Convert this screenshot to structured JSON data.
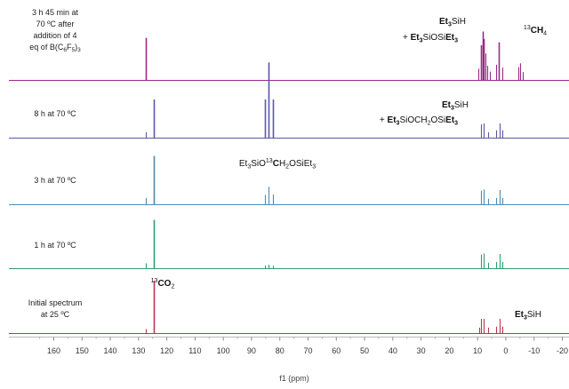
{
  "chart_data": {
    "type": "line",
    "title": "",
    "xlabel": "f1 (ppm)",
    "ylabel": "",
    "xlim": [
      165,
      -20
    ],
    "x_reversed": true,
    "x_ticks": [
      160,
      150,
      140,
      130,
      120,
      110,
      100,
      90,
      80,
      70,
      60,
      50,
      40,
      30,
      20,
      10,
      0,
      -10,
      -20
    ],
    "grid": false,
    "series": [
      {
        "name": "3 h 45 min at 70 ºC after addition of 4 eq of B(C6F5)3",
        "label_lines": [
          "3 h 45 min at",
          "70 ºC after",
          "addition of 4",
          "eq of B(C6F5)3"
        ],
        "color": "#9b2a89",
        "peaks": [
          {
            "x": 127.5,
            "h": 0.87
          },
          {
            "x": 9.6,
            "h": 0.24
          },
          {
            "x": 8.9,
            "h": 0.72
          },
          {
            "x": 8.3,
            "h": 1.0
          },
          {
            "x": 7.7,
            "h": 0.85
          },
          {
            "x": 7.1,
            "h": 0.55
          },
          {
            "x": 6.5,
            "h": 0.3
          },
          {
            "x": 5.5,
            "h": 0.18
          },
          {
            "x": 3.6,
            "h": 0.32
          },
          {
            "x": 2.5,
            "h": 0.78
          },
          {
            "x": 1.2,
            "h": 0.26
          },
          {
            "x": -4.3,
            "h": 0.27
          },
          {
            "x": -5.1,
            "h": 0.35
          },
          {
            "x": -6.0,
            "h": 0.17
          }
        ]
      },
      {
        "name": "8 h at 70 ºC",
        "label_lines": [
          "8 h at 70 ºC"
        ],
        "color": "#5a56a6",
        "peaks": [
          {
            "x": 127.5,
            "h": 0.12
          },
          {
            "x": 124.5,
            "h": 0.79
          },
          {
            "x": 85.4,
            "h": 0.79
          },
          {
            "x": 83.9,
            "h": 1.55
          },
          {
            "x": 82.3,
            "h": 0.79
          },
          {
            "x": 8.9,
            "h": 0.28
          },
          {
            "x": 7.7,
            "h": 0.3
          },
          {
            "x": 6.4,
            "h": 0.12
          },
          {
            "x": 3.5,
            "h": 0.16
          },
          {
            "x": 2.3,
            "h": 0.3
          },
          {
            "x": 1.1,
            "h": 0.16
          }
        ]
      },
      {
        "name": "3 h at 70 ºC",
        "label_lines": [
          "3 h at 70 ºC"
        ],
        "color": "#4f8ab0",
        "peaks": [
          {
            "x": 127.5,
            "h": 0.14
          },
          {
            "x": 124.5,
            "h": 1.0
          },
          {
            "x": 85.4,
            "h": 0.2
          },
          {
            "x": 83.9,
            "h": 0.37
          },
          {
            "x": 82.3,
            "h": 0.21
          },
          {
            "x": 8.9,
            "h": 0.29
          },
          {
            "x": 7.7,
            "h": 0.31
          },
          {
            "x": 6.4,
            "h": 0.12
          },
          {
            "x": 3.5,
            "h": 0.14
          },
          {
            "x": 2.3,
            "h": 0.3
          },
          {
            "x": 1.1,
            "h": 0.14
          }
        ]
      },
      {
        "name": "1 h at 70 ºC",
        "label_lines": [
          "1 h at 70 ºC"
        ],
        "color": "#2f9e6f",
        "peaks": [
          {
            "x": 127.5,
            "h": 0.11
          },
          {
            "x": 124.5,
            "h": 1.0
          },
          {
            "x": 85.4,
            "h": 0.06
          },
          {
            "x": 83.9,
            "h": 0.08
          },
          {
            "x": 82.3,
            "h": 0.06
          },
          {
            "x": 8.9,
            "h": 0.29
          },
          {
            "x": 7.7,
            "h": 0.31
          },
          {
            "x": 6.4,
            "h": 0.12
          },
          {
            "x": 3.5,
            "h": 0.14
          },
          {
            "x": 2.3,
            "h": 0.3
          },
          {
            "x": 1.1,
            "h": 0.14
          }
        ]
      },
      {
        "name": "Initial spectrum at 25 ºC",
        "label_lines": [
          "Initial spectrum",
          "at 25 ºC"
        ],
        "color": "#b43a4f",
        "peaks": [
          {
            "x": 127.5,
            "h": 0.09
          },
          {
            "x": 124.5,
            "h": 1.08
          },
          {
            "x": 9.5,
            "h": 0.12
          },
          {
            "x": 8.9,
            "h": 0.3
          },
          {
            "x": 7.7,
            "h": 0.3
          },
          {
            "x": 6.4,
            "h": 0.12
          },
          {
            "x": 3.5,
            "h": 0.14
          },
          {
            "x": 2.3,
            "h": 0.3
          },
          {
            "x": 1.1,
            "h": 0.14
          }
        ]
      }
    ],
    "annotations": [
      {
        "series": 0,
        "parts": [
          {
            "t": "Et",
            "b": true
          },
          {
            "t": "3",
            "sub": true,
            "b": true
          },
          {
            "t": "SiH"
          }
        ]
      },
      {
        "series": 0,
        "parts": [
          {
            "t": "+ "
          },
          {
            "t": "Et",
            "b": true
          },
          {
            "t": "3",
            "sub": true,
            "b": true
          },
          {
            "t": "SiOSi"
          },
          {
            "t": "Et",
            "b": true
          },
          {
            "t": "3",
            "sub": true,
            "b": true
          }
        ]
      },
      {
        "series": 0,
        "parts": [
          {
            "t": "13",
            "sup": true
          },
          {
            "t": "CH",
            "b": true
          },
          {
            "t": "4",
            "sub": true
          }
        ]
      },
      {
        "series": 1,
        "parts": [
          {
            "t": "Et",
            "b": true
          },
          {
            "t": "3",
            "sub": true,
            "b": true
          },
          {
            "t": "SiH"
          }
        ]
      },
      {
        "series": 1,
        "parts": [
          {
            "t": "+ "
          },
          {
            "t": "Et",
            "b": true
          },
          {
            "t": "3",
            "sub": true,
            "b": true
          },
          {
            "t": "SiOCH"
          },
          {
            "t": "2",
            "sub": true
          },
          {
            "t": "OSi"
          },
          {
            "t": "Et",
            "b": true
          },
          {
            "t": "3",
            "sub": true,
            "b": true
          }
        ]
      },
      {
        "series": 2,
        "parts": [
          {
            "t": "Et"
          },
          {
            "t": "3",
            "sub": true
          },
          {
            "t": "SiO"
          },
          {
            "t": "13",
            "sup": true
          },
          {
            "t": "C",
            "b": true
          },
          {
            "t": "H"
          },
          {
            "t": "2",
            "sub": true
          },
          {
            "t": "OSiEt"
          },
          {
            "t": "3",
            "sub": true
          }
        ]
      },
      {
        "series": 4,
        "parts": [
          {
            "t": "13",
            "sup": true
          },
          {
            "t": "CO",
            "b": true
          },
          {
            "t": "2",
            "sub": true
          }
        ]
      },
      {
        "series": 4,
        "parts": [
          {
            "t": "Et",
            "b": true
          },
          {
            "t": "3",
            "sub": true,
            "b": true
          },
          {
            "t": "SiH"
          }
        ]
      }
    ]
  }
}
